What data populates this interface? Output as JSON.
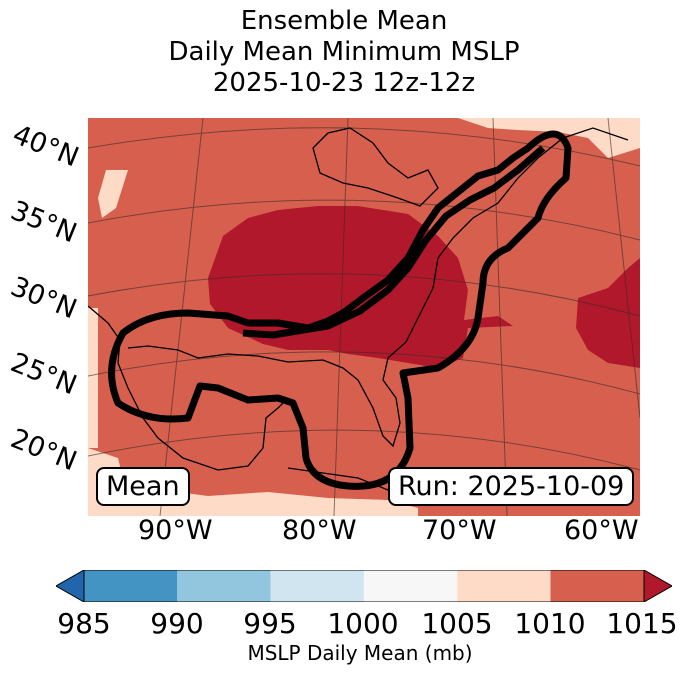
{
  "title": {
    "line1": "Ensemble Mean",
    "line2": "Daily Mean Minimum MSLP",
    "line3": "2025-10-23 12z-12z"
  },
  "map": {
    "lat_labels": [
      "40°N",
      "35°N",
      "30°N",
      "25°N",
      "20°N"
    ],
    "lon_labels": [
      "90°W",
      "80°W",
      "70°W",
      "60°W"
    ],
    "left_box": "Mean",
    "right_box": "Run: 2025-10-09",
    "colors": {
      "low": "#b2182b",
      "mid": "#d6604d",
      "high": "#fddbc7"
    }
  },
  "colorbar": {
    "ticks": [
      "985",
      "990",
      "995",
      "1000",
      "1005",
      "1010",
      "1015"
    ],
    "label": "MSLP Daily Mean (mb)",
    "colors": [
      "#2166ac",
      "#4393c3",
      "#92c5de",
      "#d1e5f0",
      "#f7f7f7",
      "#fddbc7",
      "#d6604d",
      "#b2182b"
    ]
  }
}
